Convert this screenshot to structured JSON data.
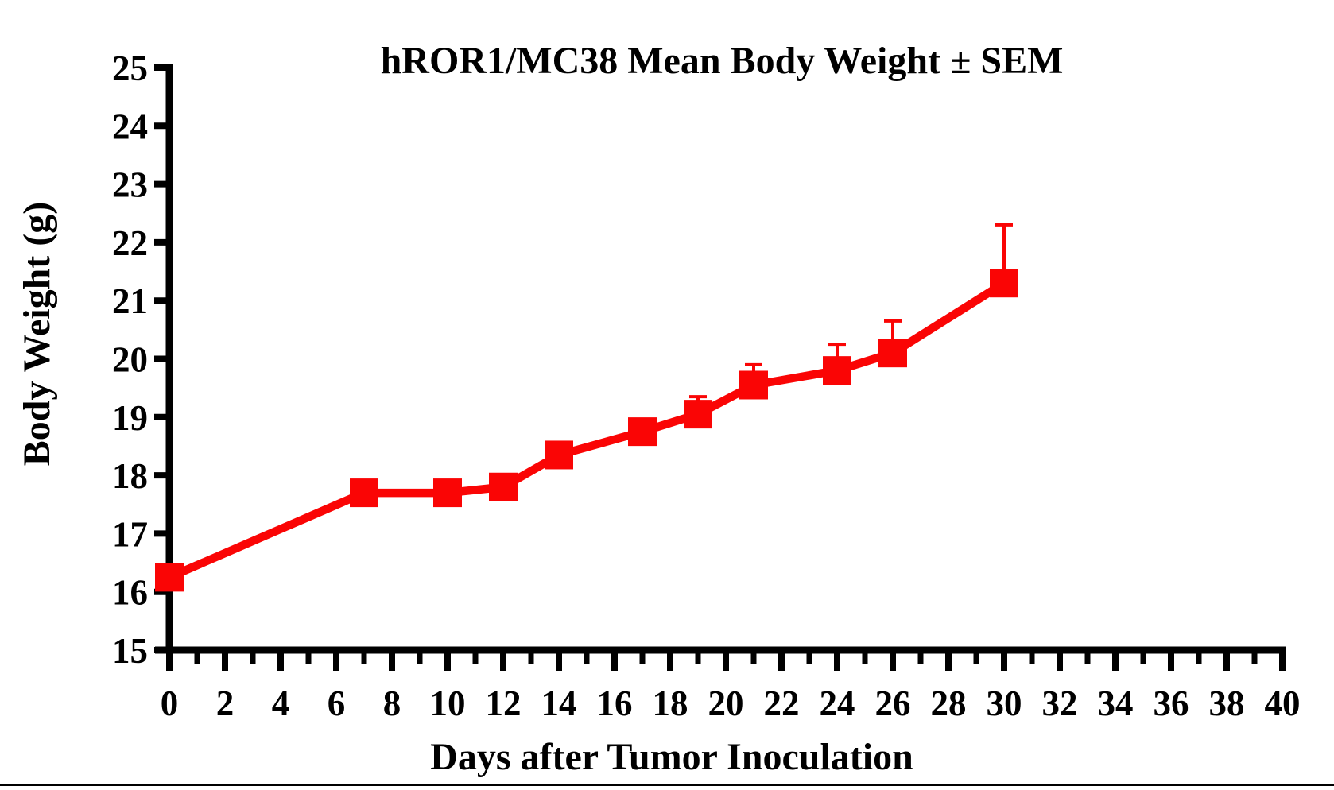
{
  "colors": {
    "series": "#FA0505",
    "axis": "#000000",
    "background": "#FFFFFF"
  },
  "footer_rule": true,
  "chart_data": {
    "type": "line",
    "title": "hROR1/MC38 Mean Body Weight ± SEM",
    "xlabel": "Days after Tumor Inoculation",
    "ylabel": "Body Weight (g)",
    "xlim": [
      0,
      40
    ],
    "ylim": [
      15,
      25
    ],
    "x_major_tick_step": 2,
    "x_minor_tick_step": 1,
    "y_tick_step": 1,
    "x_tick_labels": [
      "0",
      "2",
      "4",
      "6",
      "8",
      "10",
      "12",
      "14",
      "16",
      "18",
      "20",
      "22",
      "24",
      "26",
      "28",
      "30",
      "32",
      "34",
      "36",
      "38",
      "40"
    ],
    "y_tick_labels": [
      "15",
      "16",
      "17",
      "18",
      "19",
      "20",
      "21",
      "22",
      "23",
      "24",
      "25"
    ],
    "grid": false,
    "legend": "none",
    "error_bars": "upper SEM only",
    "marker": "square",
    "series": [
      {
        "name": "hROR1/MC38 mean body weight",
        "color": "#FA0505",
        "x": [
          0,
          7,
          10,
          12,
          14,
          17,
          19,
          21,
          24,
          26,
          30
        ],
        "y": [
          16.25,
          17.7,
          17.7,
          17.8,
          18.35,
          18.75,
          19.05,
          19.55,
          19.8,
          20.1,
          21.3
        ],
        "sem_upper": [
          0,
          0,
          0,
          0,
          0,
          0,
          0.3,
          0.35,
          0.45,
          0.55,
          1.0
        ]
      }
    ]
  }
}
